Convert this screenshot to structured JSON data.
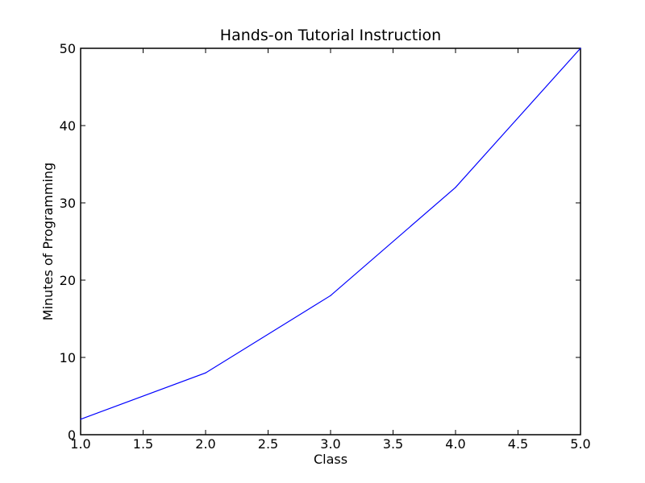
{
  "chart_data": {
    "type": "line",
    "title": "Hands-on Tutorial Instruction",
    "xlabel": "Class",
    "ylabel": "Minutes of Programming",
    "xlim": [
      1.0,
      5.0
    ],
    "ylim": [
      0,
      50
    ],
    "xticks": [
      1.0,
      1.5,
      2.0,
      2.5,
      3.0,
      3.5,
      4.0,
      4.5,
      5.0
    ],
    "xtick_labels": [
      "1.0",
      "1.5",
      "2.0",
      "2.5",
      "3.0",
      "3.5",
      "4.0",
      "4.5",
      "5.0"
    ],
    "yticks": [
      0,
      10,
      20,
      30,
      40,
      50
    ],
    "ytick_labels": [
      "0",
      "10",
      "20",
      "30",
      "40",
      "50"
    ],
    "grid": false,
    "series": [
      {
        "x": [
          1,
          2,
          3,
          4,
          5
        ],
        "y": [
          2,
          8,
          18,
          32,
          50
        ],
        "color": "#0000ff"
      }
    ]
  }
}
